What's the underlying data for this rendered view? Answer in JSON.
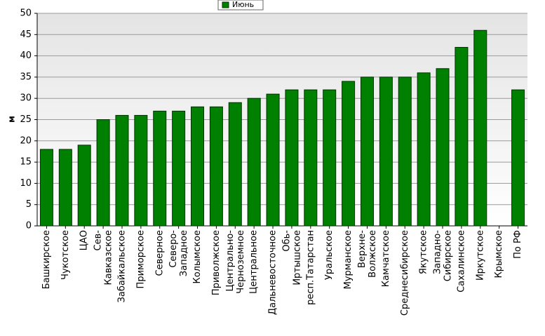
{
  "chart_data": {
    "type": "bar",
    "ylabel": "м",
    "categories": [
      "Башкирское",
      "Чукотское",
      "ЦАО",
      "Сев-\nКавказское",
      "Забайкальское",
      "Приморское",
      "Северное",
      "Северо-\nЗападное",
      "Колымское",
      "Приволжское",
      "Центрально-\nЧерноземное",
      "Центральное",
      "Дальневосточное",
      "Обь-\nИртышское",
      "респ.Татарстан",
      "Уральское",
      "Мурманское",
      "Верхне-\nВолжское",
      "Камчатское",
      "Среднесибирское",
      "Якутское",
      "Западно-\nСибирское",
      "Сахалинское",
      "Иркутское",
      "Крымское",
      "По РФ"
    ],
    "series": [
      {
        "name": "Июнь",
        "color": "#008000",
        "values": [
          18,
          18,
          19,
          25,
          26,
          26,
          27,
          27,
          28,
          28,
          29,
          30,
          31,
          32,
          32,
          32,
          34,
          35,
          35,
          35,
          36,
          37,
          42,
          46,
          null,
          32
        ]
      }
    ],
    "ylim": [
      0,
      50
    ],
    "yticks": [
      0,
      5,
      10,
      15,
      20,
      25,
      30,
      35,
      40,
      45,
      50
    ],
    "grid": true,
    "legend": "top"
  }
}
